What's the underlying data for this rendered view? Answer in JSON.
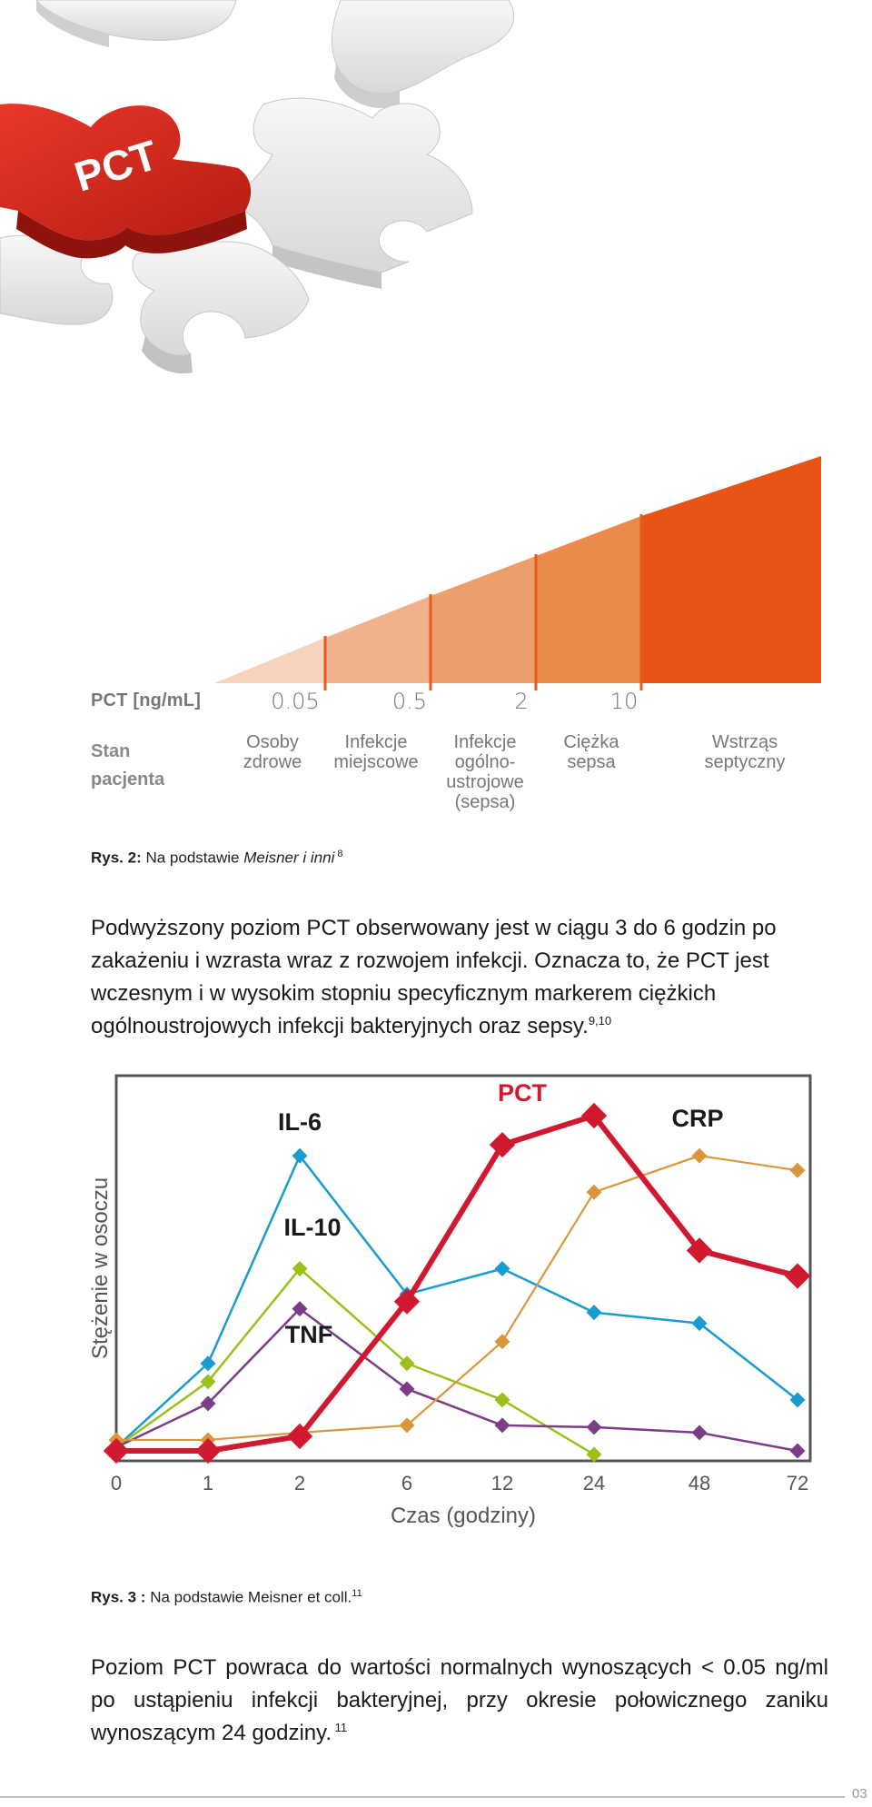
{
  "hero": {
    "piece_text": "PCT",
    "colors": {
      "red": "#d0261c",
      "red_dark": "#9e1710",
      "white": "#eeeeee",
      "shadow": "#bfbfbf"
    }
  },
  "pyramid": {
    "pct_label": "PCT [ng/mL]",
    "scale_values": [
      "0.05",
      "0.5",
      "2",
      "10"
    ],
    "stan_line1": "Stan",
    "stan_line2": "pacjenta",
    "states": [
      {
        "lines": [
          "Osoby",
          "zdrowe"
        ]
      },
      {
        "lines": [
          "Infekcje",
          "miejscowe"
        ]
      },
      {
        "lines": [
          "Infekcje",
          "ogólno-",
          "ustrojowe",
          "(sepsa)"
        ]
      },
      {
        "lines": [
          "Ciężka",
          "sepsa"
        ]
      },
      {
        "lines": [
          "Wstrząs",
          "septyczny"
        ]
      }
    ],
    "colors": [
      "#f6d3bd",
      "#f0b18d",
      "#ec9d6c",
      "#ec8a4c",
      "#e85416"
    ],
    "divider_color": "#e55b1f"
  },
  "caption1": {
    "prefix": "Rys. 2:",
    "text": " Na podstawie ",
    "italic": "Meisner i inni",
    "sup": " 8"
  },
  "para1": {
    "text": "Podwyższony poziom PCT obserwowany jest w ciągu 3 do 6 godzin po zakażeniu i wzrasta wraz z rozwojem infekcji. Oznacza to, że PCT jest wczesnym i w wysokim stopniu specyficznym markerem ciężkich ogólnoustrojowych infekcji bakteryjnych oraz sepsy.",
    "sup": "9,10"
  },
  "chart_data": {
    "type": "line",
    "categories": [
      "0",
      "1",
      "2",
      "6",
      "12",
      "24",
      "48",
      "72"
    ],
    "xlabel": "Czas (godziny)",
    "ylabel": "Stężenie w osoczu",
    "ylim": [
      0,
      100
    ],
    "series": [
      {
        "name": "IL-6",
        "color": "#1a9bd0",
        "width": 2.5,
        "values": [
          2,
          25,
          82,
          44,
          51,
          39,
          36,
          15
        ]
      },
      {
        "name": "IL-10",
        "color": "#99c11a",
        "width": 2.5,
        "values": [
          2,
          20,
          51,
          25,
          15,
          0,
          null,
          null
        ]
      },
      {
        "name": "TNF",
        "color": "#7b3d86",
        "width": 2.5,
        "values": [
          2,
          14,
          40,
          18,
          8,
          7.5,
          6,
          1
        ]
      },
      {
        "name": "CRP",
        "color": "#d9963a",
        "width": 2.2,
        "values": [
          4,
          4,
          6,
          8,
          31,
          72,
          82,
          78
        ]
      },
      {
        "name": "PCT",
        "color": "#d0192f",
        "width": 6,
        "values": [
          1,
          1,
          5,
          42,
          85,
          93,
          56,
          49
        ]
      }
    ],
    "series_label_colors": {
      "IL-6": "#1a1a1a",
      "IL-10": "#1a1a1a",
      "TNF": "#1a1a1a",
      "CRP": "#1a1a1a",
      "PCT": "#d0192f"
    }
  },
  "caption2": {
    "prefix": "Rys. 3 :",
    "text": " Na podstawie Meisner et coll.",
    "sup": "11"
  },
  "para2": {
    "text": "Poziom PCT powraca do wartości normalnych wynoszących < 0.05 ng/ml po ustąpieniu infekcji bakteryjnej, przy okresie połowicznego zaniku wynoszącym 24 godziny.",
    "sup": " 11"
  },
  "footer": {
    "page": "03"
  }
}
